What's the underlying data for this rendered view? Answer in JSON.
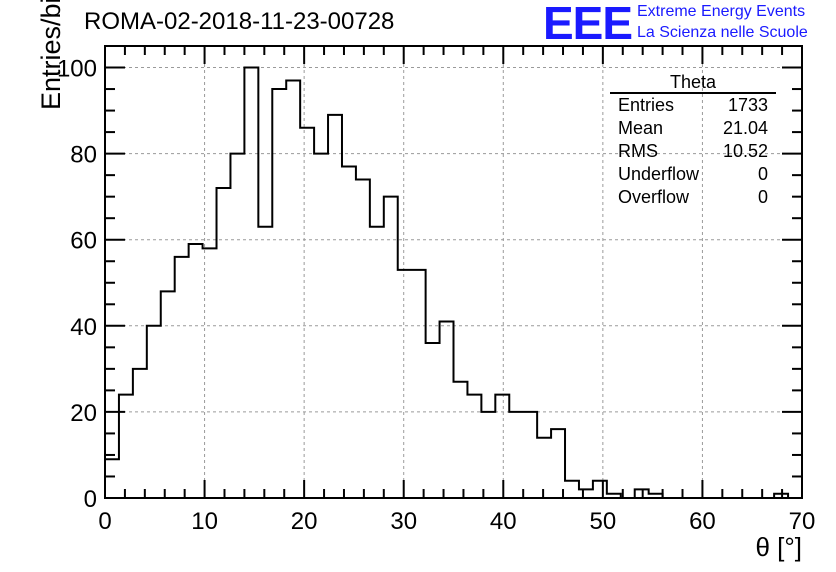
{
  "header": {
    "title": "ROMA-02-2018-11-23-00728",
    "logo_text": "EEE",
    "brand_line1": "Extreme Energy Events",
    "brand_line2": "La Scienza nelle Scuole",
    "brand_color": "#1a1aff"
  },
  "stats": {
    "title": "Theta",
    "rows": [
      {
        "label": "Entries",
        "value": "1733"
      },
      {
        "label": "Mean",
        "value": "21.04"
      },
      {
        "label": "RMS",
        "value": "10.52"
      },
      {
        "label": "Underflow",
        "value": "0"
      },
      {
        "label": "Overflow",
        "value": "0"
      }
    ]
  },
  "chart_data": {
    "type": "histogram",
    "title": "ROMA-02-2018-11-23-00728",
    "xlabel": "θ [°]",
    "ylabel": "Entries/bin",
    "xlim": [
      0,
      70
    ],
    "ylim": [
      0,
      105
    ],
    "bin_width": 1.4,
    "x_ticks": [
      "0",
      "10",
      "20",
      "30",
      "40",
      "50",
      "60",
      "70"
    ],
    "y_ticks": [
      "0",
      "20",
      "40",
      "60",
      "80",
      "100"
    ],
    "grid": true,
    "values": [
      9,
      24,
      30,
      40,
      48,
      56,
      59,
      58,
      72,
      80,
      100,
      63,
      95,
      97,
      86,
      80,
      89,
      77,
      74,
      63,
      70,
      53,
      53,
      36,
      41,
      27,
      24,
      20,
      24,
      20,
      20,
      14,
      16,
      4,
      2,
      4,
      1,
      0,
      2,
      1,
      0,
      0,
      0,
      0,
      0,
      0,
      0,
      0,
      1,
      0
    ]
  }
}
